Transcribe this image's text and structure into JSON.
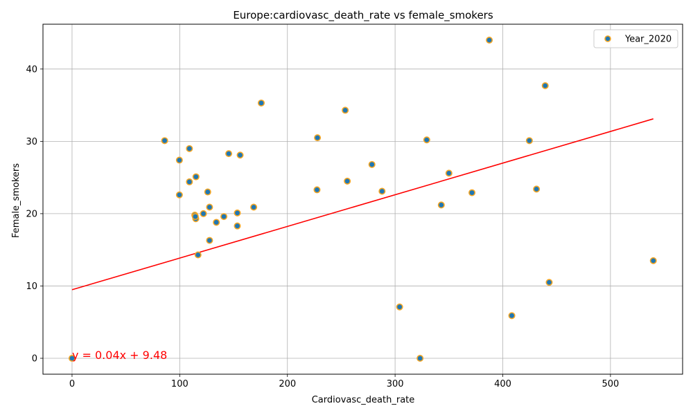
{
  "chart_data": {
    "type": "scatter",
    "title": "Europe:cardiovasc_death_rate vs female_smokers",
    "xlabel": "Cardiovasc_death_rate",
    "ylabel": "Female_smokers",
    "xlim": [
      -27,
      567
    ],
    "ylim": [
      -2.2,
      46.2
    ],
    "xticks": [
      0,
      100,
      200,
      300,
      400,
      500
    ],
    "yticks": [
      0,
      10,
      20,
      30,
      40
    ],
    "grid": true,
    "legend_position": "top-right",
    "series": [
      {
        "name": "Year_2020",
        "marker_face_color": "#1f77b4",
        "marker_edge_color": "#f5a623",
        "points": [
          [
            0,
            0
          ],
          [
            86,
            30.1
          ],
          [
            99.7,
            27.4
          ],
          [
            99.7,
            22.6
          ],
          [
            109,
            24.4
          ],
          [
            109,
            29.0
          ],
          [
            114,
            19.8
          ],
          [
            114.9,
            19.3
          ],
          [
            114.5,
            19.6
          ],
          [
            115.1,
            25.1
          ],
          [
            117,
            14.3
          ],
          [
            122,
            20.0
          ],
          [
            126,
            23.0
          ],
          [
            127.7,
            20.9
          ],
          [
            127.7,
            16.3
          ],
          [
            134,
            18.8
          ],
          [
            141,
            19.6
          ],
          [
            145.5,
            28.3
          ],
          [
            153.5,
            20.1
          ],
          [
            153.5,
            18.3
          ],
          [
            156.1,
            28.1
          ],
          [
            168.7,
            20.9
          ],
          [
            175.7,
            35.3
          ],
          [
            227.5,
            23.3
          ],
          [
            227.9,
            30.5
          ],
          [
            253.7,
            34.3
          ],
          [
            255.6,
            24.5
          ],
          [
            278.5,
            26.8
          ],
          [
            287.9,
            23.1
          ],
          [
            304.2,
            7.1
          ],
          [
            323.2,
            0.0
          ],
          [
            329.4,
            30.2
          ],
          [
            342.9,
            21.2
          ],
          [
            350,
            25.6
          ],
          [
            371.4,
            22.9
          ],
          [
            387.5,
            44.0
          ],
          [
            408.4,
            5.9
          ],
          [
            424.7,
            30.1
          ],
          [
            431.3,
            23.4
          ],
          [
            439.4,
            37.7
          ],
          [
            443.1,
            10.5
          ],
          [
            539.8,
            13.5
          ]
        ]
      }
    ],
    "regression": {
      "slope": 0.04378,
      "intercept": 9.48,
      "x_range": [
        0,
        539.8
      ],
      "color": "#ff0000",
      "label": "y = 0.04x + 9.48",
      "label_anchor": [
        0,
        0
      ]
    }
  }
}
